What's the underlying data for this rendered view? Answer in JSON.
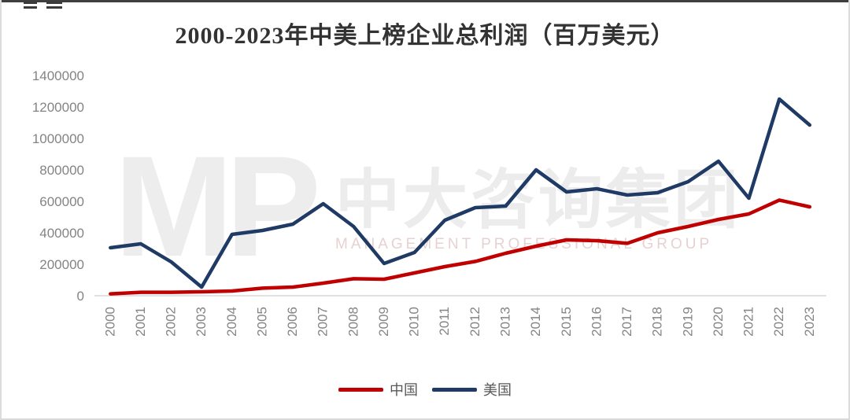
{
  "title": "2000-2023年中美上榜企业总利润（百万美元）",
  "watermark": {
    "logo": "MP",
    "cn": "中大咨询集团",
    "en": "MANAGEMENT PROFESSIONAL GROUP"
  },
  "colors": {
    "china_line": "#c00000",
    "usa_line": "#1f3a64",
    "axis_line": "#d9d9d9",
    "tick_label": "#848484",
    "legend_text": "#595959"
  },
  "chart_data": {
    "type": "line",
    "title": "2000-2023年中美上榜企业总利润（百万美元）",
    "x": [
      2000,
      2001,
      2002,
      2003,
      2004,
      2005,
      2006,
      2007,
      2008,
      2009,
      2010,
      2011,
      2012,
      2013,
      2014,
      2015,
      2016,
      2017,
      2018,
      2019,
      2020,
      2021,
      2022,
      2023
    ],
    "series": [
      {
        "name": "中国",
        "color": "#c00000",
        "values": [
          12000,
          22000,
          22000,
          25000,
          30000,
          48000,
          55000,
          80000,
          108000,
          105000,
          145000,
          185000,
          218000,
          270000,
          315000,
          355000,
          350000,
          333000,
          400000,
          440000,
          485000,
          520000,
          608000,
          565000
        ]
      },
      {
        "name": "美国",
        "color": "#1f3a64",
        "values": [
          305000,
          330000,
          215000,
          55000,
          390000,
          415000,
          455000,
          585000,
          440000,
          205000,
          275000,
          480000,
          560000,
          570000,
          800000,
          660000,
          680000,
          640000,
          655000,
          725000,
          855000,
          620000,
          1250000,
          1085000
        ]
      }
    ],
    "xlabel": "",
    "ylabel": "",
    "ylim": [
      0,
      1400000
    ],
    "ytick_step": 200000,
    "ytick_labels": [
      "0",
      "200000",
      "400000",
      "600000",
      "800000",
      "1000000",
      "1200000",
      "1400000"
    ],
    "grid": false,
    "legend_position": "bottom",
    "x_label_rotation": -90
  }
}
